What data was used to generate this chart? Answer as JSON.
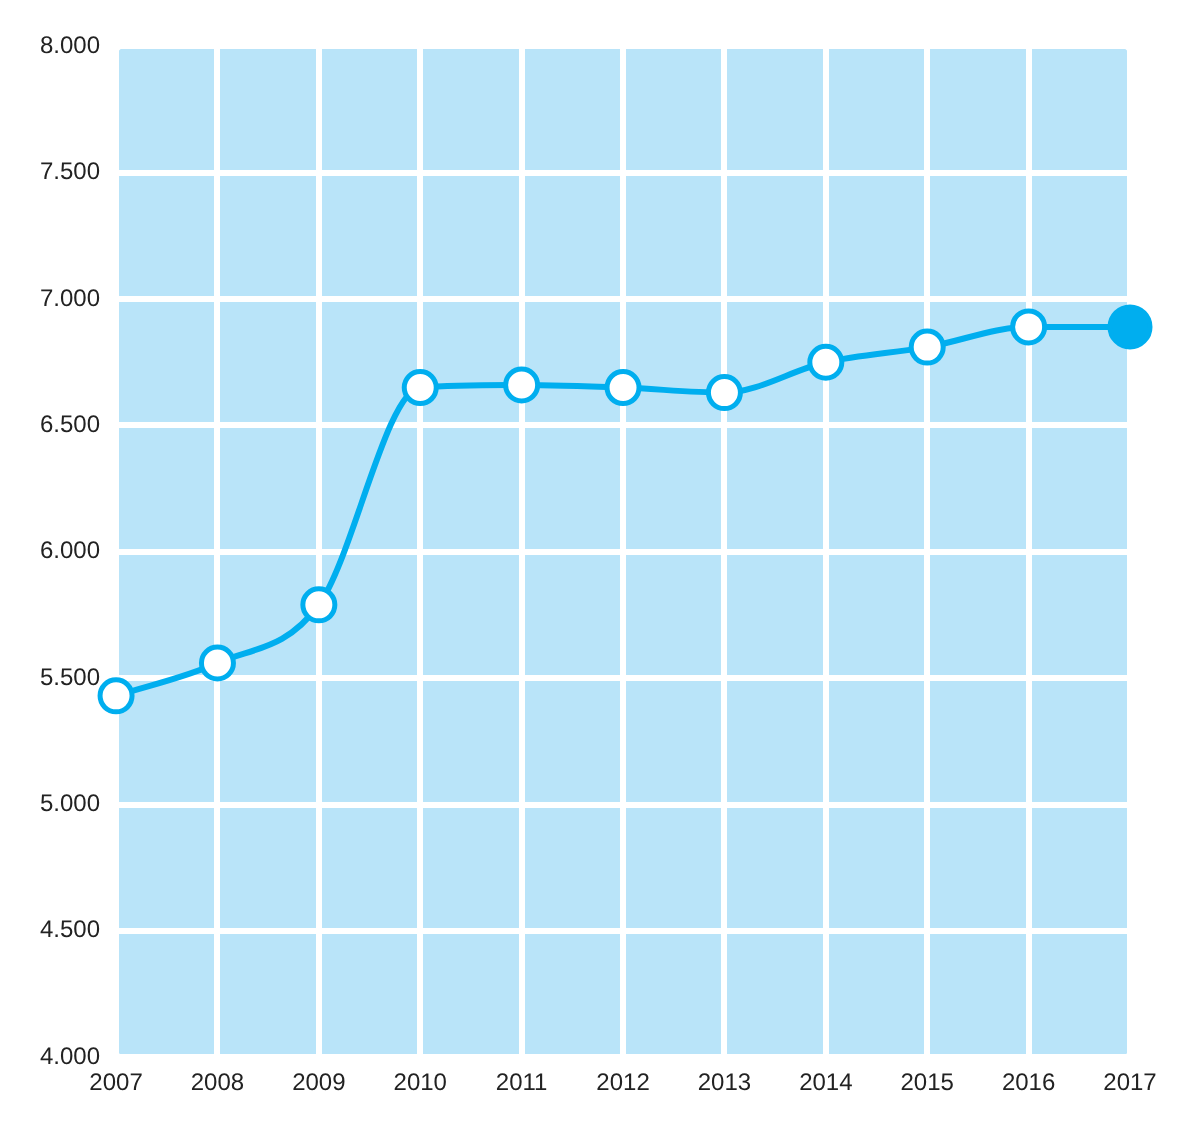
{
  "chart_data": {
    "type": "line",
    "categories": [
      "2007",
      "2008",
      "2009",
      "2010",
      "2011",
      "2012",
      "2013",
      "2014",
      "2015",
      "2016",
      "2017"
    ],
    "series": [
      {
        "color": "#00aeef",
        "values": [
          5430,
          5560,
          5790,
          6650,
          6660,
          6650,
          6630,
          6750,
          6810,
          6890,
          6890
        ],
        "colors": [
          "#ffffff",
          "#ffffff",
          "#ffffff",
          "#ffffff",
          "#ffffff",
          "#ffffff",
          "#ffffff",
          "#ffffff",
          "#ffffff",
          "#ffffff",
          "#00aeef"
        ]
      }
    ],
    "ylim": [
      4000,
      8000
    ],
    "yticks": [
      {
        "value": 4000,
        "label": "4.000"
      },
      {
        "value": 4500,
        "label": "4.500"
      },
      {
        "value": 5000,
        "label": "5.000"
      },
      {
        "value": 5500,
        "label": "5.500"
      },
      {
        "value": 6000,
        "label": "6.000"
      },
      {
        "value": 6500,
        "label": "6.500"
      },
      {
        "value": 7000,
        "label": "7.000"
      },
      {
        "value": 7500,
        "label": "7.500"
      },
      {
        "value": 8000,
        "label": "8.000"
      }
    ],
    "grid": true,
    "legend": false,
    "marker": "circle",
    "line_style": "solid"
  }
}
